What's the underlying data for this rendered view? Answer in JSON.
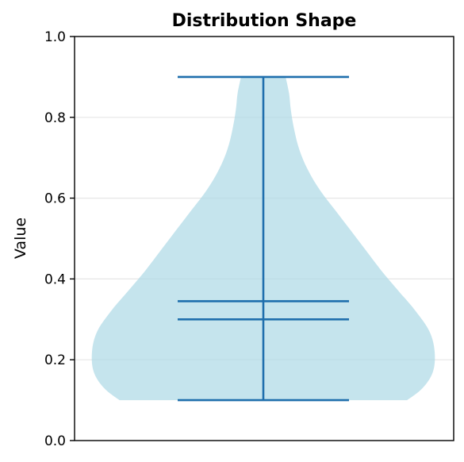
{
  "chart_data": {
    "type": "violin",
    "title": "Distribution Shape",
    "xlabel": "",
    "ylabel": "Value",
    "ylim": [
      0.0,
      1.0
    ],
    "yticks": [
      "0.0",
      "0.2",
      "0.4",
      "0.6",
      "0.8",
      "1.0"
    ],
    "grid": "horizontal",
    "colors": {
      "body": "#add8e6",
      "lines": "#1f6fad",
      "grid": "#e6e6e6",
      "frame": "#000000"
    },
    "summary": {
      "min": 0.1,
      "max": 0.9,
      "median": 0.3,
      "mean": 0.345
    },
    "density": [
      {
        "y": 0.1,
        "w": 0.84
      },
      {
        "y": 0.13,
        "w": 0.93
      },
      {
        "y": 0.17,
        "w": 0.99
      },
      {
        "y": 0.22,
        "w": 1.0
      },
      {
        "y": 0.27,
        "w": 0.97
      },
      {
        "y": 0.32,
        "w": 0.89
      },
      {
        "y": 0.37,
        "w": 0.79
      },
      {
        "y": 0.42,
        "w": 0.69
      },
      {
        "y": 0.47,
        "w": 0.6
      },
      {
        "y": 0.52,
        "w": 0.51
      },
      {
        "y": 0.57,
        "w": 0.42
      },
      {
        "y": 0.62,
        "w": 0.33
      },
      {
        "y": 0.67,
        "w": 0.26
      },
      {
        "y": 0.72,
        "w": 0.21
      },
      {
        "y": 0.77,
        "w": 0.18
      },
      {
        "y": 0.82,
        "w": 0.16
      },
      {
        "y": 0.86,
        "w": 0.15
      },
      {
        "y": 0.9,
        "w": 0.13
      }
    ]
  }
}
